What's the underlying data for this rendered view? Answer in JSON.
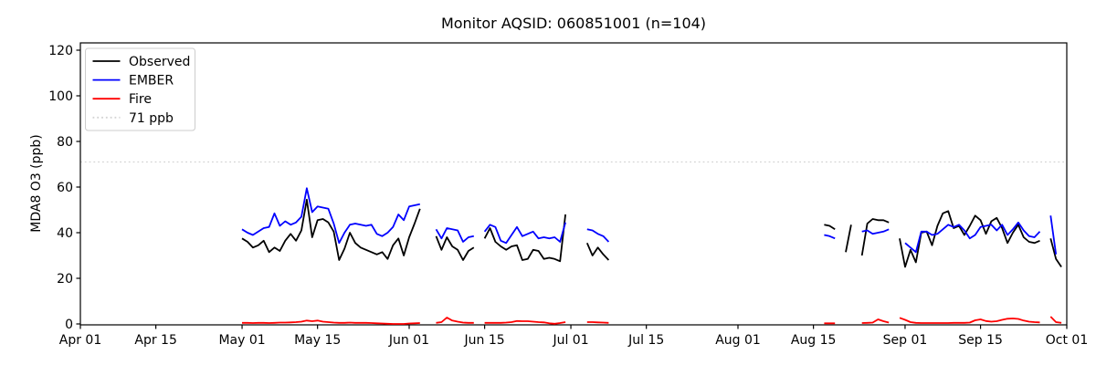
{
  "figure": {
    "background": "#ffffff"
  },
  "chart_data": {
    "type": "line",
    "title": "Monitor AQSID: 060851001 (n=104)",
    "xlabel": "",
    "ylabel": "MDA8 O3 (ppb)",
    "ylim": [
      0,
      123
    ],
    "yticks": [
      0,
      20,
      40,
      60,
      80,
      100,
      120
    ],
    "xtick_labels": [
      "Apr 01",
      "Apr 15",
      "May 01",
      "May 15",
      "Jun 01",
      "Jun 15",
      "Jul 01",
      "Jul 15",
      "Aug 01",
      "Aug 15",
      "Sep 01",
      "Sep 15",
      "Oct 01"
    ],
    "x_range": [
      "Apr 01",
      "Oct 01"
    ],
    "grid": false,
    "legend_position": "upper-left",
    "threshold": {
      "value": 71,
      "label": "71 ppb",
      "color": "#d3d3d3",
      "style": "dotted"
    },
    "series_meta": [
      {
        "key": "observed",
        "name": "Observed",
        "color": "#000000"
      },
      {
        "key": "ember",
        "name": "EMBER",
        "color": "#0000ff"
      },
      {
        "key": "fire",
        "name": "Fire",
        "color": "#ff0000"
      }
    ],
    "points": [
      {
        "date": "May 01",
        "observed": 37.5,
        "ember": 41.5,
        "fire": 0.5
      },
      {
        "date": "May 02",
        "observed": 36,
        "ember": 40,
        "fire": 0.5
      },
      {
        "date": "May 03",
        "observed": 33.5,
        "ember": 39,
        "fire": 0.4
      },
      {
        "date": "May 04",
        "observed": 34.5,
        "ember": 40.5,
        "fire": 0.5
      },
      {
        "date": "May 05",
        "observed": 36.5,
        "ember": 42,
        "fire": 0.5
      },
      {
        "date": "May 06",
        "observed": 31.5,
        "ember": 42.5,
        "fire": 0.4
      },
      {
        "date": "May 07",
        "observed": 33.5,
        "ember": 48.5,
        "fire": 0.5
      },
      {
        "date": "May 08",
        "observed": 32,
        "ember": 43,
        "fire": 0.6
      },
      {
        "date": "May 09",
        "observed": 36.5,
        "ember": 45,
        "fire": 0.6
      },
      {
        "date": "May 10",
        "observed": 39.5,
        "ember": 43.5,
        "fire": 0.7
      },
      {
        "date": "May 11",
        "observed": 36.5,
        "ember": 44.5,
        "fire": 0.8
      },
      {
        "date": "May 12",
        "observed": 41,
        "ember": 47,
        "fire": 1
      },
      {
        "date": "May 13",
        "observed": 54.5,
        "ember": 59.5,
        "fire": 1.5
      },
      {
        "date": "May 14",
        "observed": 38,
        "ember": 49,
        "fire": 1.2
      },
      {
        "date": "May 15",
        "observed": 45.5,
        "ember": 51.5,
        "fire": 1.5
      },
      {
        "date": "May 16",
        "observed": 46,
        "ember": 51,
        "fire": 1
      },
      {
        "date": "May 17",
        "observed": 44.5,
        "ember": 50.5,
        "fire": 0.8
      },
      {
        "date": "May 18",
        "observed": 40.5,
        "ember": 44,
        "fire": 0.6
      },
      {
        "date": "May 19",
        "observed": 28,
        "ember": 35.5,
        "fire": 0.5
      },
      {
        "date": "May 20",
        "observed": 33,
        "ember": 40,
        "fire": 0.5
      },
      {
        "date": "May 21",
        "observed": 40,
        "ember": 43.5,
        "fire": 0.6
      },
      {
        "date": "May 22",
        "observed": 35.5,
        "ember": 44,
        "fire": 0.5
      },
      {
        "date": "May 23",
        "observed": 33.5,
        "ember": 43.5,
        "fire": 0.5
      },
      {
        "date": "May 24",
        "observed": 32.5,
        "ember": 43,
        "fire": 0.5
      },
      {
        "date": "May 25",
        "observed": 31.5,
        "ember": 43.5,
        "fire": 0.4
      },
      {
        "date": "May 26",
        "observed": 30.5,
        "ember": 39.5,
        "fire": 0.3
      },
      {
        "date": "May 27",
        "observed": 31.5,
        "ember": 38.5,
        "fire": 0.2
      },
      {
        "date": "May 28",
        "observed": 28.5,
        "ember": 40,
        "fire": 0.1
      },
      {
        "date": "May 29",
        "observed": 34.5,
        "ember": 42.5,
        "fire": 0
      },
      {
        "date": "May 30",
        "observed": 37.5,
        "ember": 48,
        "fire": 0
      },
      {
        "date": "May 31",
        "observed": 30,
        "ember": 45.5,
        "fire": 0
      },
      {
        "date": "Jun 01",
        "observed": 38,
        "ember": 51.5,
        "fire": 0.2
      },
      {
        "date": "Jun 02",
        "observed": 44,
        "ember": 52,
        "fire": 0.3
      },
      {
        "date": "Jun 03",
        "observed": 50.5,
        "ember": 52.5,
        "fire": 0.4
      },
      {
        "date": "Jun 06",
        "observed": 38.5,
        "ember": 41.5,
        "fire": 0.5
      },
      {
        "date": "Jun 07",
        "observed": 32.5,
        "ember": 37.5,
        "fire": 0.8
      },
      {
        "date": "Jun 08",
        "observed": 38,
        "ember": 42,
        "fire": 2.8
      },
      {
        "date": "Jun 09",
        "observed": 34,
        "ember": 41.5,
        "fire": 1.5
      },
      {
        "date": "Jun 10",
        "observed": 32.5,
        "ember": 41,
        "fire": 1
      },
      {
        "date": "Jun 11",
        "observed": 28,
        "ember": 36,
        "fire": 0.6
      },
      {
        "date": "Jun 12",
        "observed": 32,
        "ember": 38,
        "fire": 0.5
      },
      {
        "date": "Jun 13",
        "observed": 33.5,
        "ember": 38.5,
        "fire": 0.5
      },
      {
        "date": "Jun 15",
        "observed": 37.5,
        "ember": 40.5,
        "fire": 0.5
      },
      {
        "date": "Jun 16",
        "observed": 42,
        "ember": 43.5,
        "fire": 0.5
      },
      {
        "date": "Jun 17",
        "observed": 36,
        "ember": 42.5,
        "fire": 0.5
      },
      {
        "date": "Jun 18",
        "observed": 34,
        "ember": 36.5,
        "fire": 0.5
      },
      {
        "date": "Jun 19",
        "observed": 32.5,
        "ember": 35.5,
        "fire": 0.6
      },
      {
        "date": "Jun 20",
        "observed": 34,
        "ember": 39,
        "fire": 0.8
      },
      {
        "date": "Jun 21",
        "observed": 34.5,
        "ember": 42.5,
        "fire": 1.3
      },
      {
        "date": "Jun 22",
        "observed": 28,
        "ember": 38.5,
        "fire": 1.2
      },
      {
        "date": "Jun 23",
        "observed": 28.5,
        "ember": 39.5,
        "fire": 1.2
      },
      {
        "date": "Jun 24",
        "observed": 32.5,
        "ember": 40.5,
        "fire": 1
      },
      {
        "date": "Jun 25",
        "observed": 32,
        "ember": 37.5,
        "fire": 0.8
      },
      {
        "date": "Jun 26",
        "observed": 28.5,
        "ember": 38,
        "fire": 0.7
      },
      {
        "date": "Jun 27",
        "observed": 29,
        "ember": 37.5,
        "fire": 0.3
      },
      {
        "date": "Jun 28",
        "observed": 28.5,
        "ember": 38,
        "fire": 0.1
      },
      {
        "date": "Jun 29",
        "observed": 27.5,
        "ember": 36,
        "fire": 0.4
      },
      {
        "date": "Jun 30",
        "observed": 48,
        "ember": 44.5,
        "fire": 0.8
      },
      {
        "date": "Jul 04",
        "observed": 35.5,
        "ember": 41.5,
        "fire": 0.8
      },
      {
        "date": "Jul 05",
        "observed": 30,
        "ember": 41,
        "fire": 0.8
      },
      {
        "date": "Jul 06",
        "observed": 33.5,
        "ember": 39.5,
        "fire": 0.7
      },
      {
        "date": "Jul 07",
        "observed": 30.5,
        "ember": 38.5,
        "fire": 0.6
      },
      {
        "date": "Jul 08",
        "observed": 28,
        "ember": 36,
        "fire": 0.5
      },
      {
        "date": "Aug 17",
        "observed": 43.5,
        "ember": 39,
        "fire": 0.3
      },
      {
        "date": "Aug 18",
        "observed": 43,
        "ember": 38.5,
        "fire": 0.3
      },
      {
        "date": "Aug 19",
        "observed": 41.5,
        "ember": 37.5,
        "fire": 0.3
      },
      {
        "date": "Aug 21",
        "observed": 31.5,
        "ember": null,
        "fire": null
      },
      {
        "date": "Aug 22",
        "observed": 43.5,
        "ember": null,
        "fire": null
      },
      {
        "date": "Aug 24",
        "observed": 30,
        "ember": 40.5,
        "fire": 0.4
      },
      {
        "date": "Aug 25",
        "observed": 44,
        "ember": 41,
        "fire": 0.5
      },
      {
        "date": "Aug 26",
        "observed": 46,
        "ember": 39.5,
        "fire": 0.6
      },
      {
        "date": "Aug 27",
        "observed": 45.5,
        "ember": 40,
        "fire": 2
      },
      {
        "date": "Aug 28",
        "observed": 45.5,
        "ember": 40.5,
        "fire": 1.2
      },
      {
        "date": "Aug 29",
        "observed": 44.5,
        "ember": 41.5,
        "fire": 0.6
      },
      {
        "date": "Aug 31",
        "observed": 37.5,
        "ember": null,
        "fire": 2.7
      },
      {
        "date": "Sep 01",
        "observed": 25,
        "ember": 35.5,
        "fire": 1.8
      },
      {
        "date": "Sep 02",
        "observed": 32.5,
        "ember": 33.5,
        "fire": 0.8
      },
      {
        "date": "Sep 03",
        "observed": 27,
        "ember": 31.5,
        "fire": 0.5
      },
      {
        "date": "Sep 04",
        "observed": 40,
        "ember": 40.5,
        "fire": 0.4
      },
      {
        "date": "Sep 05",
        "observed": 40.5,
        "ember": 40.5,
        "fire": 0.4
      },
      {
        "date": "Sep 06",
        "observed": 34.5,
        "ember": 39,
        "fire": 0.4
      },
      {
        "date": "Sep 07",
        "observed": 43,
        "ember": 39.5,
        "fire": 0.4
      },
      {
        "date": "Sep 08",
        "observed": 48.5,
        "ember": 41.5,
        "fire": 0.4
      },
      {
        "date": "Sep 09",
        "observed": 49.5,
        "ember": 43.5,
        "fire": 0.4
      },
      {
        "date": "Sep 10",
        "observed": 42,
        "ember": 42.5,
        "fire": 0.5
      },
      {
        "date": "Sep 11",
        "observed": 43,
        "ember": 43.5,
        "fire": 0.5
      },
      {
        "date": "Sep 12",
        "observed": 39,
        "ember": 41,
        "fire": 0.5
      },
      {
        "date": "Sep 13",
        "observed": 43,
        "ember": 37.5,
        "fire": 0.6
      },
      {
        "date": "Sep 14",
        "observed": 47.5,
        "ember": 39,
        "fire": 1.6
      },
      {
        "date": "Sep 15",
        "observed": 45.5,
        "ember": 42.5,
        "fire": 2
      },
      {
        "date": "Sep 16",
        "observed": 39.5,
        "ember": 43,
        "fire": 1.3
      },
      {
        "date": "Sep 17",
        "observed": 45,
        "ember": 43.5,
        "fire": 1
      },
      {
        "date": "Sep 18",
        "observed": 46.5,
        "ember": 41,
        "fire": 1.2
      },
      {
        "date": "Sep 19",
        "observed": 42,
        "ember": 43.5,
        "fire": 1.8
      },
      {
        "date": "Sep 20",
        "observed": 35.5,
        "ember": 39,
        "fire": 2.3
      },
      {
        "date": "Sep 21",
        "observed": 40,
        "ember": 41.5,
        "fire": 2.4
      },
      {
        "date": "Sep 22",
        "observed": 43.5,
        "ember": 44.5,
        "fire": 2.2
      },
      {
        "date": "Sep 23",
        "observed": 38,
        "ember": 41,
        "fire": 1.5
      },
      {
        "date": "Sep 24",
        "observed": 36,
        "ember": 38.5,
        "fire": 1
      },
      {
        "date": "Sep 25",
        "observed": 35.5,
        "ember": 38,
        "fire": 0.8
      },
      {
        "date": "Sep 26",
        "observed": 36.5,
        "ember": 40.5,
        "fire": 0.7
      },
      {
        "date": "Sep 28",
        "observed": 37.5,
        "ember": 47.5,
        "fire": 3.2
      },
      {
        "date": "Sep 29",
        "observed": 28.5,
        "ember": 30.5,
        "fire": 0.8
      },
      {
        "date": "Sep 30",
        "observed": 25,
        "ember": null,
        "fire": 0.5
      }
    ]
  }
}
